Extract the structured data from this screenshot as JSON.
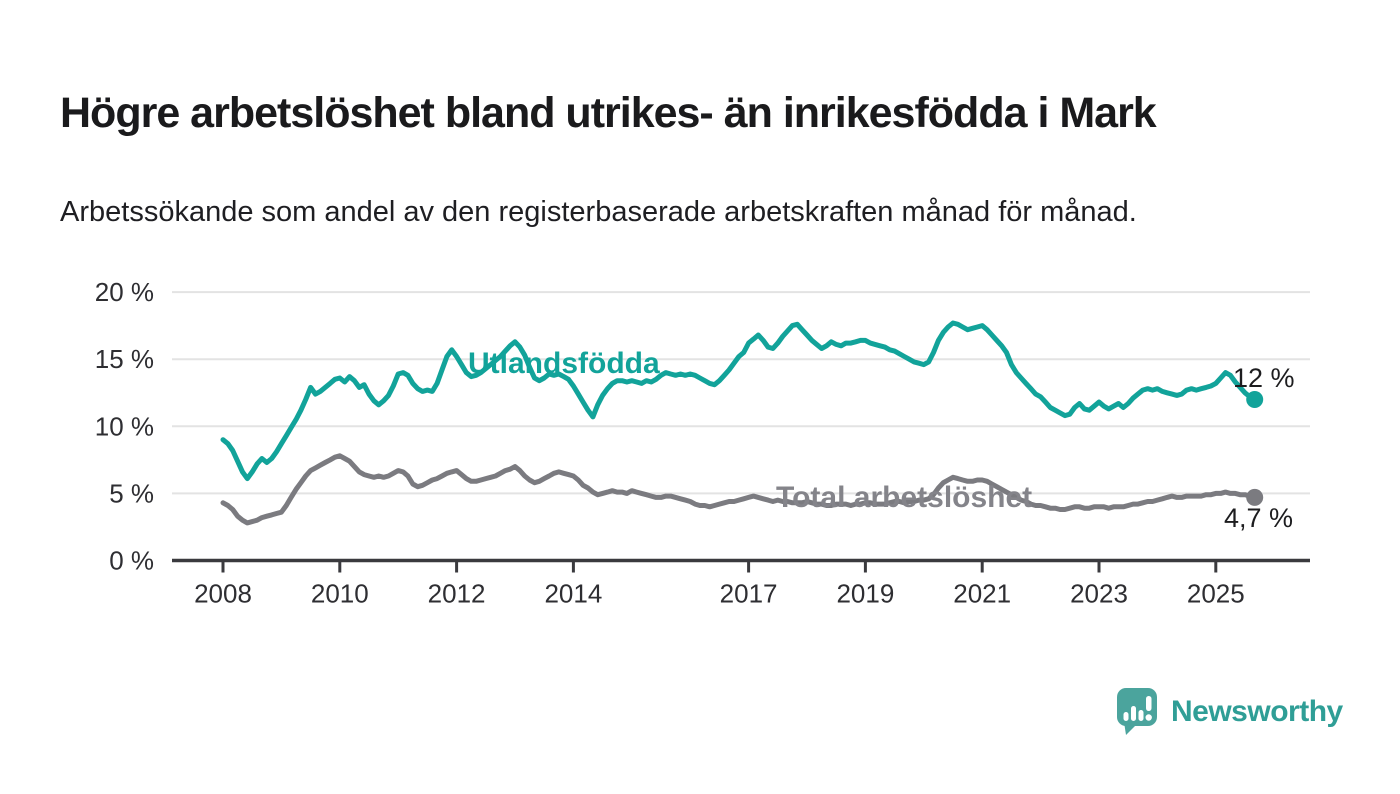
{
  "header": {
    "title": "Högre arbetslöshet bland utrikes- än inrikesfödda i Mark",
    "subtitle": "Arbetssökande som andel av den registerbaserade arbetskraften månad för månad."
  },
  "chart_data": {
    "type": "line",
    "unit": "%",
    "frequency": "monthly",
    "x_start": "2008-01",
    "x_end": "2025-09",
    "ylim": [
      0,
      20
    ],
    "grid": "horizontal",
    "x_ticks": [
      2008,
      2010,
      2012,
      2014,
      2017,
      2019,
      2021,
      2023,
      2025
    ],
    "y_ticks": [
      {
        "value": 0,
        "label": "0 %"
      },
      {
        "value": 5,
        "label": "5 %"
      },
      {
        "value": 10,
        "label": "10 %"
      },
      {
        "value": 15,
        "label": "15 %"
      },
      {
        "value": 20,
        "label": "20 %"
      }
    ],
    "series": [
      {
        "id": "utlandsfodda",
        "name": "Utlandsfödda",
        "color": "#12a39a",
        "end_label": "12 %",
        "end_value": 12.0,
        "values": [
          9.0,
          8.7,
          8.2,
          7.4,
          6.6,
          6.1,
          6.6,
          7.2,
          7.6,
          7.3,
          7.6,
          8.1,
          8.7,
          9.3,
          9.9,
          10.5,
          11.2,
          12.0,
          12.9,
          12.4,
          12.6,
          12.9,
          13.2,
          13.5,
          13.6,
          13.3,
          13.7,
          13.4,
          12.9,
          13.1,
          12.4,
          11.9,
          11.6,
          11.9,
          12.3,
          13.0,
          13.9,
          14.0,
          13.8,
          13.2,
          12.8,
          12.6,
          12.7,
          12.6,
          13.2,
          14.2,
          15.2,
          15.7,
          15.2,
          14.6,
          14.0,
          13.7,
          13.8,
          14.0,
          14.3,
          14.6,
          14.9,
          15.2,
          15.6,
          16.0,
          16.3,
          15.9,
          15.3,
          14.4,
          13.6,
          13.4,
          13.6,
          13.9,
          13.8,
          13.9,
          13.7,
          13.5,
          13.0,
          12.4,
          11.8,
          11.2,
          10.7,
          11.6,
          12.3,
          12.8,
          13.2,
          13.4,
          13.4,
          13.3,
          13.4,
          13.3,
          13.2,
          13.4,
          13.3,
          13.5,
          13.8,
          14.0,
          13.9,
          13.8,
          13.9,
          13.8,
          13.9,
          13.8,
          13.6,
          13.4,
          13.2,
          13.1,
          13.4,
          13.8,
          14.2,
          14.7,
          15.2,
          15.5,
          16.2,
          16.5,
          16.8,
          16.4,
          15.9,
          15.8,
          16.2,
          16.7,
          17.1,
          17.5,
          17.6,
          17.2,
          16.8,
          16.4,
          16.1,
          15.8,
          16.0,
          16.3,
          16.1,
          16.0,
          16.2,
          16.2,
          16.3,
          16.4,
          16.4,
          16.2,
          16.1,
          16.0,
          15.9,
          15.7,
          15.6,
          15.4,
          15.2,
          15.0,
          14.8,
          14.7,
          14.6,
          14.8,
          15.5,
          16.4,
          17.0,
          17.4,
          17.7,
          17.6,
          17.4,
          17.2,
          17.3,
          17.4,
          17.5,
          17.2,
          16.8,
          16.4,
          16.0,
          15.5,
          14.6,
          14.0,
          13.6,
          13.2,
          12.8,
          12.4,
          12.2,
          11.8,
          11.4,
          11.2,
          11.0,
          10.8,
          10.9,
          11.4,
          11.7,
          11.3,
          11.2,
          11.5,
          11.8,
          11.5,
          11.3,
          11.5,
          11.7,
          11.4,
          11.7,
          12.1,
          12.4,
          12.7,
          12.8,
          12.7,
          12.8,
          12.6,
          12.5,
          12.4,
          12.3,
          12.4,
          12.7,
          12.8,
          12.7,
          12.8,
          12.9,
          13.0,
          13.2,
          13.6,
          14.0,
          13.8,
          13.3,
          12.9,
          12.5,
          12.2,
          12.0
        ]
      },
      {
        "id": "total",
        "name": "Total arbetslöshet",
        "color": "#7b7b80",
        "end_label": "4,7 %",
        "end_value": 4.7,
        "values": [
          4.3,
          4.1,
          3.8,
          3.3,
          3.0,
          2.8,
          2.9,
          3.0,
          3.2,
          3.3,
          3.4,
          3.5,
          3.6,
          4.1,
          4.7,
          5.3,
          5.8,
          6.3,
          6.7,
          6.9,
          7.1,
          7.3,
          7.5,
          7.7,
          7.8,
          7.6,
          7.4,
          7.0,
          6.6,
          6.4,
          6.3,
          6.2,
          6.3,
          6.2,
          6.3,
          6.5,
          6.7,
          6.6,
          6.3,
          5.7,
          5.5,
          5.6,
          5.8,
          6.0,
          6.1,
          6.3,
          6.5,
          6.6,
          6.7,
          6.4,
          6.1,
          5.9,
          5.9,
          6.0,
          6.1,
          6.2,
          6.3,
          6.5,
          6.7,
          6.8,
          7.0,
          6.7,
          6.3,
          6.0,
          5.8,
          5.9,
          6.1,
          6.3,
          6.5,
          6.6,
          6.5,
          6.4,
          6.3,
          6.0,
          5.6,
          5.4,
          5.1,
          4.9,
          5.0,
          5.1,
          5.2,
          5.1,
          5.1,
          5.0,
          5.2,
          5.1,
          5.0,
          4.9,
          4.8,
          4.7,
          4.7,
          4.8,
          4.8,
          4.7,
          4.6,
          4.5,
          4.4,
          4.2,
          4.1,
          4.1,
          4.0,
          4.1,
          4.2,
          4.3,
          4.4,
          4.4,
          4.5,
          4.6,
          4.7,
          4.8,
          4.7,
          4.6,
          4.5,
          4.4,
          4.5,
          4.4,
          4.4,
          4.3,
          4.3,
          4.3,
          4.4,
          4.3,
          4.2,
          4.2,
          4.1,
          4.1,
          4.2,
          4.2,
          4.2,
          4.1,
          4.2,
          4.2,
          4.3,
          4.3,
          4.2,
          4.2,
          4.2,
          4.3,
          4.4,
          4.4,
          4.3,
          4.4,
          4.4,
          4.5,
          4.5,
          4.6,
          4.9,
          5.4,
          5.8,
          6.0,
          6.2,
          6.1,
          6.0,
          5.9,
          5.9,
          6.0,
          6.0,
          5.9,
          5.7,
          5.5,
          5.3,
          5.1,
          4.9,
          4.7,
          4.5,
          4.4,
          4.2,
          4.1,
          4.1,
          4.0,
          3.9,
          3.9,
          3.8,
          3.8,
          3.9,
          4.0,
          4.0,
          3.9,
          3.9,
          4.0,
          4.0,
          4.0,
          3.9,
          4.0,
          4.0,
          4.0,
          4.1,
          4.2,
          4.2,
          4.3,
          4.4,
          4.4,
          4.5,
          4.6,
          4.7,
          4.8,
          4.7,
          4.7,
          4.8,
          4.8,
          4.8,
          4.8,
          4.9,
          4.9,
          5.0,
          5.0,
          5.1,
          5.0,
          5.0,
          4.9,
          4.9,
          4.8,
          4.7
        ]
      }
    ],
    "colors": {
      "grid": "#e3e3e3",
      "axis": "#3a3a3e",
      "tick_text": "#2e2e32",
      "annotation_text": "#1d1d1f"
    }
  },
  "logo": {
    "brand": "Newsworthy",
    "icon": "bar-chart-speech-bubble-icon",
    "color": "#2f9e96"
  }
}
